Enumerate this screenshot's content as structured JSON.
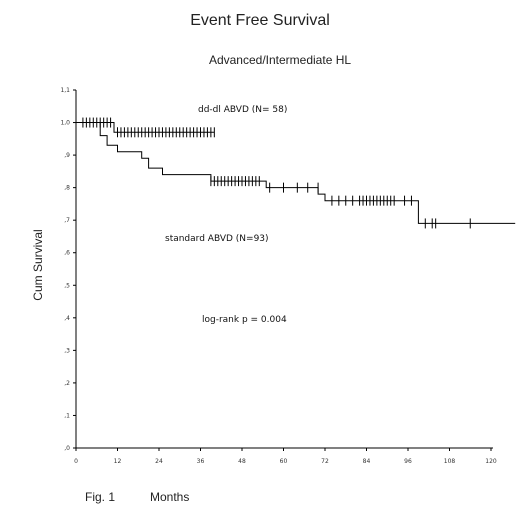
{
  "chart_data": {
    "type": "line",
    "title": "Event Free Survival",
    "subtitle": "Advanced/Intermediate HL",
    "xlabel": "Months",
    "ylabel": "Cum Survival",
    "figure_label": "Fig. 1",
    "xlim": [
      0,
      120
    ],
    "ylim": [
      0.0,
      1.1
    ],
    "xticks": [
      "0",
      "12",
      "24",
      "36",
      "48",
      "60",
      "72",
      "84",
      "96",
      "108",
      "120"
    ],
    "yticks": [
      ",0",
      ",1",
      ",2",
      ",3",
      ",4",
      ",5",
      ",6",
      ",7",
      ",8",
      ",9",
      "1,0",
      "1,1"
    ],
    "grid": false,
    "series": [
      {
        "name": "dd-dl ABVD (N= 58)",
        "steps": [
          [
            0,
            1.0
          ],
          [
            11,
            1.0
          ],
          [
            11,
            0.97
          ],
          [
            40,
            0.97
          ]
        ],
        "censored": [
          2,
          3,
          4,
          5,
          6,
          7,
          8,
          9,
          10,
          12,
          13,
          14,
          15,
          16,
          17,
          18,
          19,
          20,
          21,
          22,
          23,
          24,
          25,
          26,
          27,
          28,
          29,
          30,
          31,
          32,
          33,
          34,
          35,
          36,
          37,
          38,
          39,
          40
        ],
        "censored_y": [
          1.0,
          1.0,
          1.0,
          1.0,
          1.0,
          1.0,
          1.0,
          1.0,
          1.0,
          0.97,
          0.97,
          0.97,
          0.97,
          0.97,
          0.97,
          0.97,
          0.97,
          0.97,
          0.97,
          0.97,
          0.97,
          0.97,
          0.97,
          0.97,
          0.97,
          0.97,
          0.97,
          0.97,
          0.97,
          0.97,
          0.97,
          0.97,
          0.97,
          0.97,
          0.97,
          0.97,
          0.97,
          0.97
        ]
      },
      {
        "name": "standard ABVD (N=93)",
        "steps": [
          [
            0,
            1.0
          ],
          [
            7,
            1.0
          ],
          [
            7,
            0.96
          ],
          [
            9,
            0.96
          ],
          [
            9,
            0.93
          ],
          [
            12,
            0.93
          ],
          [
            12,
            0.91
          ],
          [
            19,
            0.91
          ],
          [
            19,
            0.89
          ],
          [
            21,
            0.89
          ],
          [
            21,
            0.86
          ],
          [
            25,
            0.86
          ],
          [
            25,
            0.84
          ],
          [
            39,
            0.84
          ],
          [
            39,
            0.82
          ],
          [
            55,
            0.82
          ],
          [
            55,
            0.8
          ],
          [
            70,
            0.8
          ],
          [
            70,
            0.78
          ],
          [
            72,
            0.78
          ],
          [
            72,
            0.76
          ],
          [
            99,
            0.76
          ],
          [
            99,
            0.69
          ],
          [
            127,
            0.69
          ]
        ],
        "censored": [
          39,
          40,
          41,
          42,
          43,
          44,
          45,
          46,
          47,
          48,
          49,
          50,
          51,
          52,
          53,
          56,
          60,
          64,
          67,
          70,
          74,
          76,
          78,
          80,
          82,
          83,
          84,
          85,
          86,
          87,
          88,
          89,
          90,
          91,
          92,
          95,
          97,
          101,
          103,
          104,
          114
        ],
        "censored_y": [
          0.82,
          0.82,
          0.82,
          0.82,
          0.82,
          0.82,
          0.82,
          0.82,
          0.82,
          0.82,
          0.82,
          0.82,
          0.82,
          0.82,
          0.82,
          0.8,
          0.8,
          0.8,
          0.8,
          0.8,
          0.76,
          0.76,
          0.76,
          0.76,
          0.76,
          0.76,
          0.76,
          0.76,
          0.76,
          0.76,
          0.76,
          0.76,
          0.76,
          0.76,
          0.76,
          0.76,
          0.76,
          0.69,
          0.69,
          0.69,
          0.69
        ]
      }
    ],
    "annotations": [
      "dd-dl ABVD (N= 58)",
      "standard ABVD (N=93)",
      "log-rank  p = 0.004"
    ]
  }
}
